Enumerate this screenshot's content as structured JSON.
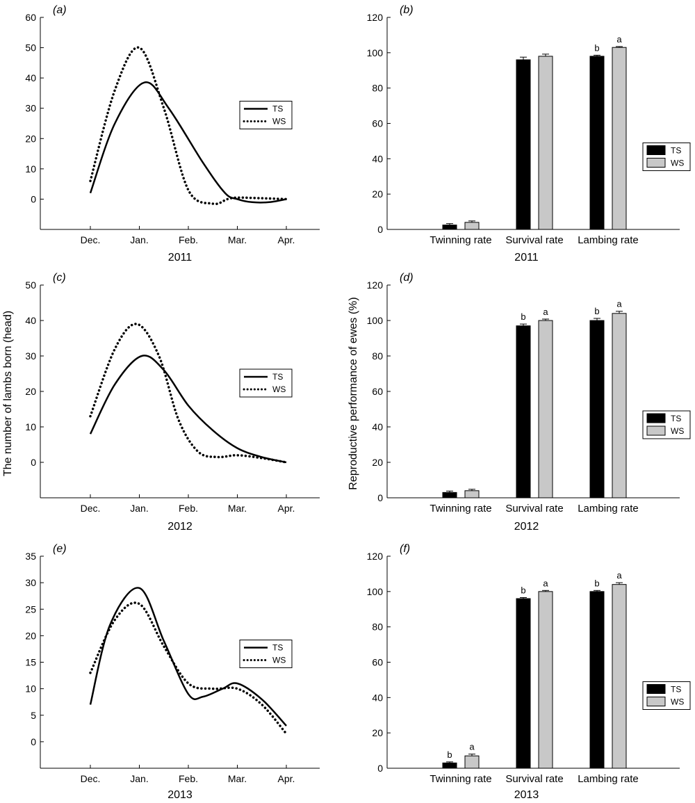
{
  "figure": {
    "y_label_left": "The number of lambs born (head)",
    "y_label_right": "Reproductive performance of ewes (%)"
  },
  "chart_data": [
    {
      "type": "line",
      "panel_label": "(a)",
      "xlabel": "2011",
      "x": [
        "Dec.",
        "Jan.",
        "Feb.",
        "Mar.",
        "Apr."
      ],
      "ylim": [
        -10,
        60
      ],
      "yticks": [
        0,
        10,
        20,
        30,
        40,
        50,
        60
      ],
      "legend_position": "right",
      "series": [
        {
          "name": "TS",
          "style": "solid",
          "points": [
            [
              0,
              2
            ],
            [
              0.5,
              25
            ],
            [
              1.1,
              38.5
            ],
            [
              1.6,
              30
            ],
            [
              2.3,
              12
            ],
            [
              2.75,
              2
            ],
            [
              3.0,
              0
            ],
            [
              3.3,
              -1
            ],
            [
              3.65,
              -1
            ],
            [
              4,
              0
            ]
          ]
        },
        {
          "name": "WS",
          "style": "dotted",
          "points": [
            [
              0,
              6
            ],
            [
              0.5,
              36
            ],
            [
              1,
              50
            ],
            [
              1.5,
              30
            ],
            [
              2,
              3
            ],
            [
              2.5,
              -1.5
            ],
            [
              2.8,
              0
            ],
            [
              3.0,
              0.5
            ],
            [
              3.5,
              0.3
            ],
            [
              4,
              0
            ]
          ]
        }
      ]
    },
    {
      "type": "bar",
      "panel_label": "(b)",
      "xlabel": "2011",
      "categories": [
        "Twinning rate",
        "Survival rate",
        "Lambing rate"
      ],
      "ylim": [
        0,
        120
      ],
      "yticks": [
        0,
        20,
        40,
        60,
        80,
        100,
        120
      ],
      "legend_position": "right",
      "series": [
        {
          "name": "TS",
          "color": "#000000",
          "values": [
            2.5,
            96,
            98
          ],
          "errors": [
            0.8,
            1.5,
            0.6
          ],
          "labels": [
            "",
            "",
            "b"
          ]
        },
        {
          "name": "WS",
          "color": "#c8c8c8",
          "values": [
            4,
            98,
            103
          ],
          "errors": [
            0.8,
            1.2,
            0.5
          ],
          "labels": [
            "",
            "",
            "a"
          ]
        }
      ]
    },
    {
      "type": "line",
      "panel_label": "(c)",
      "xlabel": "2012",
      "x": [
        "Dec.",
        "Jan.",
        "Feb.",
        "Mar.",
        "Apr."
      ],
      "ylim": [
        -10,
        50
      ],
      "yticks": [
        0,
        10,
        20,
        30,
        40,
        50
      ],
      "legend_position": "right",
      "series": [
        {
          "name": "TS",
          "style": "solid",
          "points": [
            [
              0,
              8
            ],
            [
              0.5,
              22
            ],
            [
              1.05,
              30
            ],
            [
              1.5,
              26
            ],
            [
              2,
              16
            ],
            [
              2.5,
              9
            ],
            [
              3,
              4
            ],
            [
              3.5,
              1.5
            ],
            [
              4,
              0
            ]
          ]
        },
        {
          "name": "WS",
          "style": "dotted",
          "points": [
            [
              0,
              13
            ],
            [
              0.5,
              32
            ],
            [
              0.95,
              39
            ],
            [
              1.4,
              30
            ],
            [
              1.8,
              12
            ],
            [
              2.2,
              3
            ],
            [
              2.6,
              1.5
            ],
            [
              3,
              2
            ],
            [
              3.5,
              1.2
            ],
            [
              4,
              0
            ]
          ]
        }
      ]
    },
    {
      "type": "bar",
      "panel_label": "(d)",
      "xlabel": "2012",
      "categories": [
        "Twinning rate",
        "Survival rate",
        "Lambing rate"
      ],
      "ylim": [
        0,
        120
      ],
      "yticks": [
        0,
        20,
        40,
        60,
        80,
        100,
        120
      ],
      "legend_position": "right",
      "series": [
        {
          "name": "TS",
          "color": "#000000",
          "values": [
            3,
            97,
            100
          ],
          "errors": [
            0.8,
            1,
            1.2
          ],
          "labels": [
            "",
            "b",
            "b"
          ]
        },
        {
          "name": "WS",
          "color": "#c8c8c8",
          "values": [
            4,
            100,
            104
          ],
          "errors": [
            0.8,
            0.8,
            1.2
          ],
          "labels": [
            "",
            "a",
            "a"
          ]
        }
      ]
    },
    {
      "type": "line",
      "panel_label": "(e)",
      "xlabel": "2013",
      "x": [
        "Dec.",
        "Jan.",
        "Feb.",
        "Mar.",
        "Apr."
      ],
      "ylim": [
        -5,
        35
      ],
      "yticks": [
        0,
        5,
        10,
        15,
        20,
        25,
        30,
        35
      ],
      "legend_position": "right",
      "series": [
        {
          "name": "TS",
          "style": "solid",
          "points": [
            [
              0,
              7
            ],
            [
              0.4,
              22
            ],
            [
              1,
              29
            ],
            [
              1.5,
              19
            ],
            [
              2,
              9
            ],
            [
              2.3,
              8.5
            ],
            [
              2.7,
              10
            ],
            [
              3,
              11
            ],
            [
              3.5,
              8
            ],
            [
              4,
              3
            ]
          ]
        },
        {
          "name": "WS",
          "style": "dotted",
          "points": [
            [
              0,
              13
            ],
            [
              0.5,
              23
            ],
            [
              1,
              26
            ],
            [
              1.5,
              18
            ],
            [
              2,
              11
            ],
            [
              2.5,
              10
            ],
            [
              3,
              10
            ],
            [
              3.5,
              7
            ],
            [
              4,
              1.5
            ]
          ]
        }
      ]
    },
    {
      "type": "bar",
      "panel_label": "(f)",
      "xlabel": "2013",
      "categories": [
        "Twinning rate",
        "Survival rate",
        "Lambing rate"
      ],
      "ylim": [
        0,
        120
      ],
      "yticks": [
        0,
        20,
        40,
        60,
        80,
        100,
        120
      ],
      "legend_position": "right",
      "series": [
        {
          "name": "TS",
          "color": "#000000",
          "values": [
            3,
            96,
            100
          ],
          "errors": [
            0.6,
            0.6,
            0.6
          ],
          "labels": [
            "b",
            "b",
            "b"
          ]
        },
        {
          "name": "WS",
          "color": "#c8c8c8",
          "values": [
            7,
            100,
            104
          ],
          "errors": [
            1,
            0.6,
            1
          ],
          "labels": [
            "a",
            "a",
            "a"
          ]
        }
      ]
    }
  ]
}
